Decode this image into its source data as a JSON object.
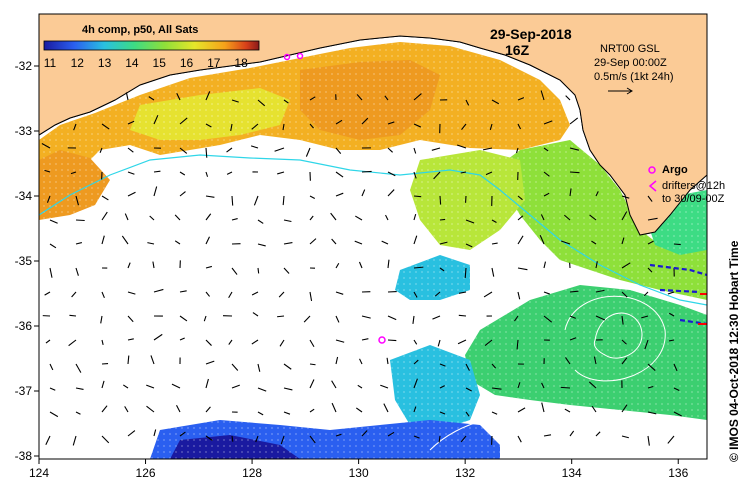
{
  "header": {
    "date": "29-Sep-2018",
    "time": "16Z"
  },
  "colorbar": {
    "title": "4h comp, p50, All Sats",
    "ticks": [
      "11",
      "12",
      "13",
      "14",
      "15",
      "16",
      "17",
      "18"
    ],
    "stops": [
      "#1a1aa0",
      "#2a5ff0",
      "#29c0e0",
      "#3ddc84",
      "#8ee03a",
      "#e6e62a",
      "#f6a21a",
      "#d8401a",
      "#8a1a1a"
    ]
  },
  "info_box": {
    "line1": "NRT00 GSL",
    "line2": "29-Sep 00:00Z",
    "line3": "0.5m/s (1kt 24h)"
  },
  "argo_legend": {
    "label": "Argo",
    "line1": "drifters@12h",
    "line2": "to 30/09-00Z"
  },
  "side_label": "© IMOS 04-Oct-2018 12:30 Hobart Time",
  "axes": {
    "x_ticks": [
      "124",
      "126",
      "128",
      "130",
      "132",
      "134",
      "136"
    ],
    "y_ticks": [
      "-32",
      "-33",
      "-34",
      "-35",
      "-36",
      "-37",
      "-38"
    ]
  },
  "colors": {
    "land": "#fbcb96",
    "argo": "#ff00ff"
  }
}
